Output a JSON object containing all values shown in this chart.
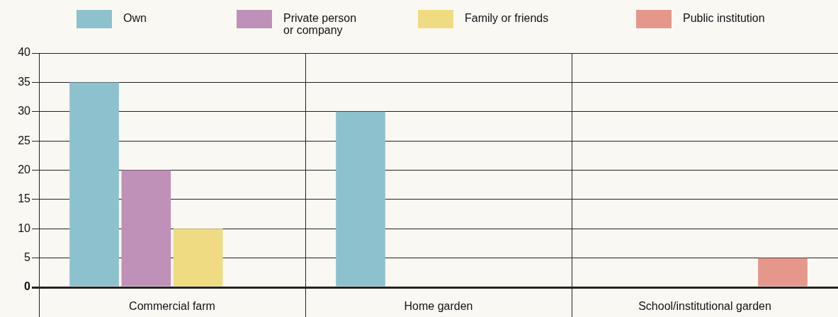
{
  "chart_data": {
    "type": "bar",
    "categories": [
      "Commercial farm",
      "Home garden",
      "School/institutional garden"
    ],
    "series": [
      {
        "name": "Own",
        "color": "#8dc1cd",
        "values": [
          35,
          30,
          null
        ]
      },
      {
        "name": "Private person or company",
        "color": "#bf91b8",
        "values": [
          20,
          null,
          null
        ]
      },
      {
        "name": "Family or friends",
        "color": "#efdc82",
        "values": [
          10,
          null,
          null
        ]
      },
      {
        "name": "Public institution",
        "color": "#e5978b",
        "values": [
          null,
          null,
          5
        ]
      }
    ],
    "ylim": [
      0,
      40
    ],
    "yticks": [
      0,
      5,
      10,
      15,
      20,
      25,
      30,
      35,
      40
    ],
    "grid": true,
    "legend": "top"
  }
}
